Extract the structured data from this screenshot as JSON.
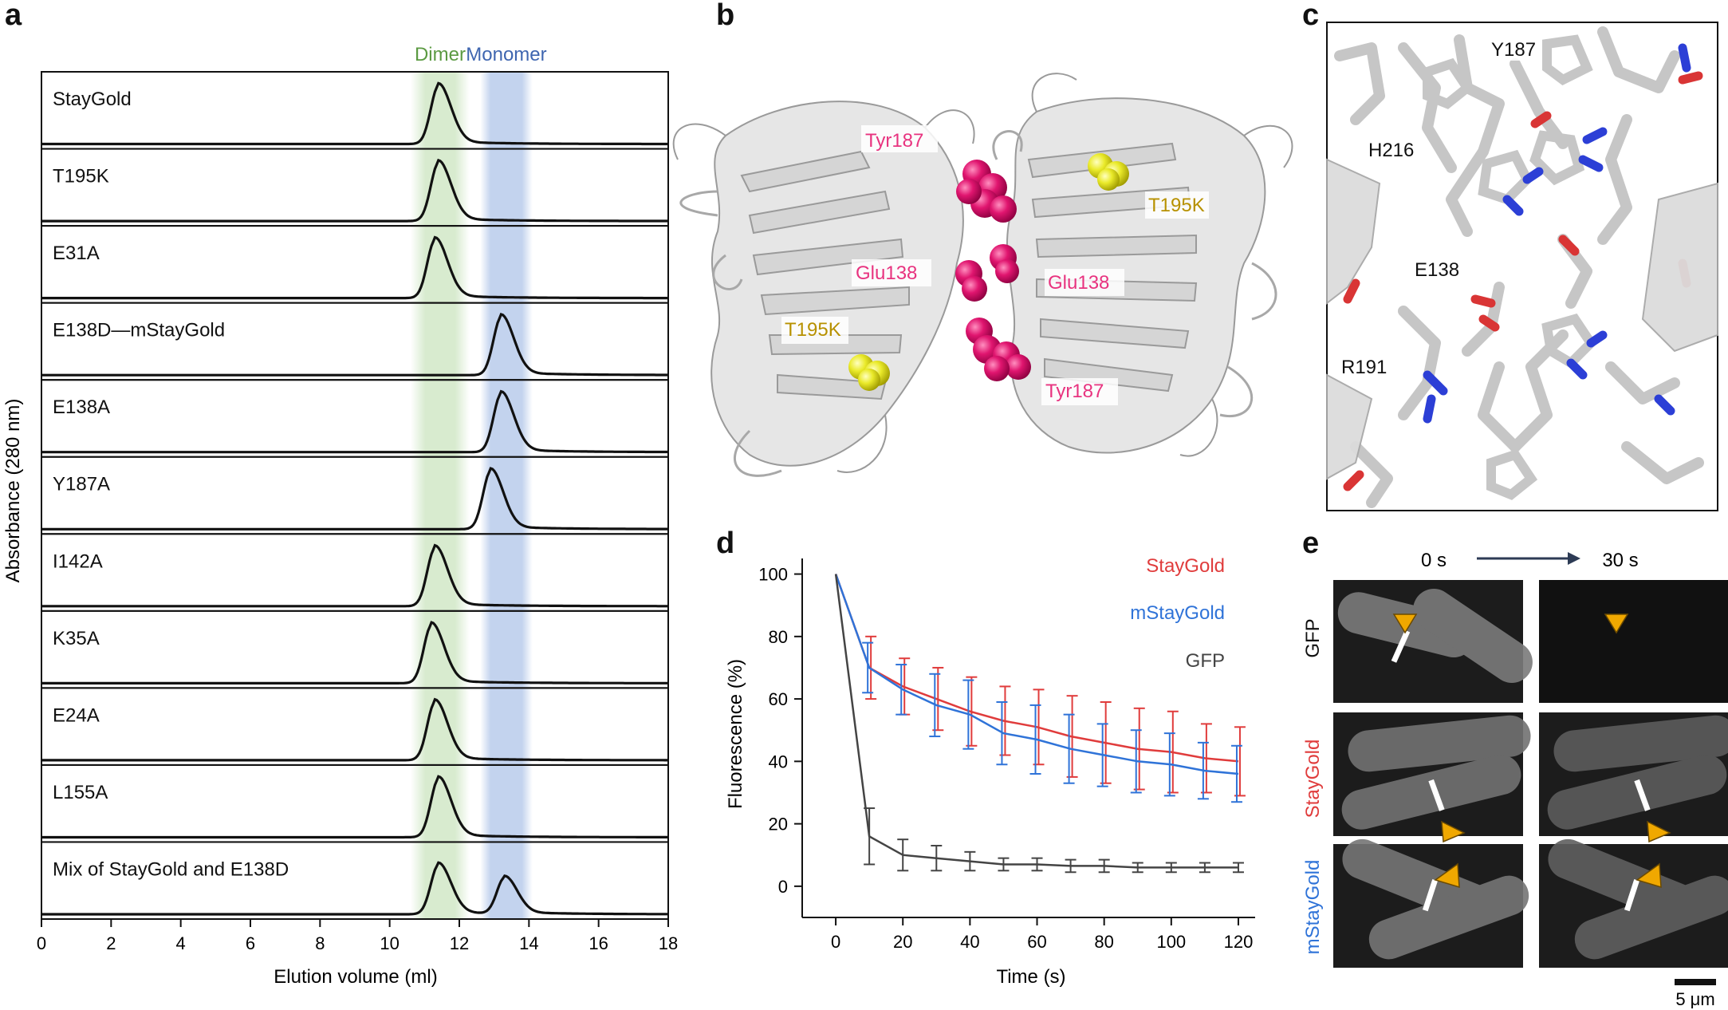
{
  "panels": {
    "a": {
      "letter": "a"
    },
    "b": {
      "letter": "b"
    },
    "c": {
      "letter": "c"
    },
    "d": {
      "letter": "d"
    },
    "e": {
      "letter": "e"
    }
  },
  "chart_data": [
    {
      "id": "a",
      "type": "line",
      "title": "",
      "xlabel": "Elution volume (ml)",
      "ylabel": "Absorbance (280 nm)",
      "xlim": [
        0,
        18
      ],
      "xticks": [
        0,
        2,
        4,
        6,
        8,
        10,
        12,
        14,
        16,
        18
      ],
      "bands": [
        {
          "label": "Dimer",
          "range": [
            10.6,
            12.3
          ],
          "color": "#d8ebcf",
          "label_color": "#5b9a42"
        },
        {
          "label": "Monomer",
          "range": [
            12.6,
            14.1
          ],
          "color": "#c3d3ee",
          "label_color": "#3f66b0"
        }
      ],
      "traces": [
        {
          "name": "StayGold",
          "peaks": [
            [
              11.4,
              1.0
            ]
          ]
        },
        {
          "name": "T195K",
          "peaks": [
            [
              11.4,
              1.0
            ]
          ]
        },
        {
          "name": "E31A",
          "peaks": [
            [
              11.3,
              1.0
            ]
          ]
        },
        {
          "name": "E138D—mStayGold",
          "peaks": [
            [
              13.2,
              1.0
            ]
          ]
        },
        {
          "name": "E138A",
          "peaks": [
            [
              13.2,
              1.0
            ]
          ]
        },
        {
          "name": "Y187A",
          "peaks": [
            [
              12.9,
              1.0
            ]
          ]
        },
        {
          "name": "I142A",
          "peaks": [
            [
              11.3,
              1.0
            ]
          ]
        },
        {
          "name": "K35A",
          "peaks": [
            [
              11.2,
              1.0
            ]
          ]
        },
        {
          "name": "E24A",
          "peaks": [
            [
              11.3,
              1.0
            ]
          ]
        },
        {
          "name": "L155A",
          "peaks": [
            [
              11.4,
              1.0
            ]
          ]
        },
        {
          "name": "Mix of StayGold and E138D",
          "peaks": [
            [
              11.4,
              0.85
            ],
            [
              13.3,
              0.62
            ]
          ]
        }
      ]
    },
    {
      "id": "d",
      "type": "line",
      "title": "",
      "xlabel": "Time (s)",
      "ylabel": "Fluorescence (%)",
      "xlim": [
        -10,
        125
      ],
      "ylim": [
        -10,
        105
      ],
      "xticks": [
        0,
        20,
        40,
        60,
        80,
        100,
        120
      ],
      "yticks": [
        0,
        20,
        40,
        60,
        80,
        100
      ],
      "x": [
        0,
        10,
        20,
        30,
        40,
        50,
        60,
        70,
        80,
        90,
        100,
        110,
        120
      ],
      "series": [
        {
          "name": "StayGold",
          "color": "#e03c3c",
          "values": [
            100,
            70,
            64,
            60,
            56,
            53,
            51,
            48,
            46,
            44,
            43,
            41,
            40
          ],
          "errors": [
            0,
            10,
            9,
            10,
            11,
            11,
            12,
            13,
            13,
            13,
            13,
            11,
            11
          ]
        },
        {
          "name": "mStayGold",
          "color": "#2f73d8",
          "values": [
            100,
            70,
            63,
            58,
            55,
            49,
            47,
            44,
            42,
            40,
            39,
            37,
            36
          ],
          "errors": [
            0,
            8,
            8,
            10,
            11,
            10,
            11,
            11,
            10,
            10,
            10,
            9,
            9
          ]
        },
        {
          "name": "GFP",
          "color": "#444444",
          "values": [
            100,
            16,
            10,
            9,
            8,
            7,
            7,
            6.5,
            6.5,
            6,
            6,
            6,
            6
          ],
          "errors": [
            0,
            9,
            5,
            4,
            3,
            2,
            2,
            2,
            2,
            1.5,
            1.5,
            1.5,
            1.5
          ]
        }
      ],
      "legend_position": "top-right"
    }
  ],
  "structure_b": {
    "labels": [
      {
        "text": "Tyr187",
        "color": "#e8337f"
      },
      {
        "text": "T195K",
        "color": "#b79100"
      },
      {
        "text": "Glu138",
        "color": "#e8337f"
      },
      {
        "text": "Glu138",
        "color": "#e8337f"
      },
      {
        "text": "T195K",
        "color": "#b79100"
      },
      {
        "text": "Tyr187",
        "color": "#e8337f"
      }
    ]
  },
  "structure_c": {
    "labels": [
      "Y187",
      "H216",
      "E138",
      "R191"
    ]
  },
  "micrographs_e": {
    "time_start": "0 s",
    "time_end": "30 s",
    "rows": [
      {
        "label": "GFP",
        "color": "#111111"
      },
      {
        "label": "StayGold",
        "color": "#e03c3c"
      },
      {
        "label": "mStayGold",
        "color": "#2f73d8"
      }
    ],
    "scale_bar": "5 μm",
    "arrow_color": "#f0a800"
  }
}
